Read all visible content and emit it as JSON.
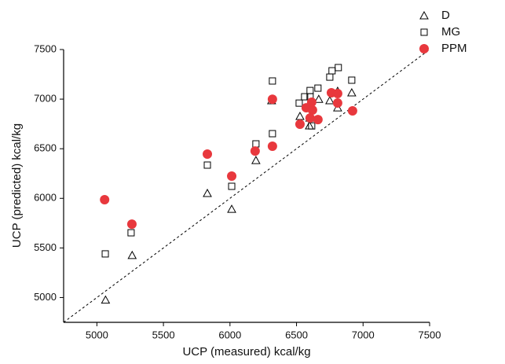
{
  "chart_data": {
    "type": "scatter",
    "x_label": "UCP (measured) kcal/kg",
    "y_label": "UCP (predicted) kcal/kg",
    "xlim": [
      4750,
      7500
    ],
    "ylim": [
      4750,
      7500
    ],
    "xticks": [
      5000,
      5500,
      6000,
      6500,
      7000,
      7500
    ],
    "yticks": [
      5000,
      5500,
      6000,
      6500,
      7000,
      7500
    ],
    "reference_line": "y=x",
    "series": [
      {
        "name": "D",
        "marker": "triangle",
        "color": "#000000",
        "filled": false,
        "x": [
          5065,
          5265,
          5830,
          6013,
          6195,
          6313,
          6526,
          6597,
          6600,
          6667,
          6750,
          6809,
          6809,
          6915
        ],
        "values": [
          4975,
          5425,
          6050,
          5890,
          6382,
          6985,
          6826,
          6731,
          6810,
          6999,
          6985,
          7080,
          6913,
          7064
        ]
      },
      {
        "name": "MG",
        "marker": "square",
        "color": "#000000",
        "filled": false,
        "x": [
          5063,
          5257,
          5830,
          6013,
          6195,
          6319,
          6319,
          6520,
          6561,
          6602,
          6602,
          6614,
          6661,
          6750,
          6767,
          6814,
          6915
        ],
        "values": [
          5440,
          5653,
          6335,
          6121,
          6549,
          7183,
          6652,
          6960,
          7024,
          7087,
          7024,
          6730,
          7111,
          7222,
          7286,
          7318,
          7191
        ]
      },
      {
        "name": "PPM",
        "marker": "circle",
        "color": "#e8383d",
        "filled": true,
        "x": [
          5058,
          5263,
          5830,
          6013,
          6189,
          6319,
          6319,
          6526,
          6573,
          6614,
          6602,
          6661,
          6762,
          6809,
          6809,
          6921,
          6620
        ],
        "values": [
          5986,
          5740,
          6446,
          6224,
          6477,
          6999,
          6525,
          6747,
          6913,
          6969,
          6810,
          6794,
          7064,
          7056,
          6961,
          6882,
          6890
        ]
      }
    ]
  }
}
